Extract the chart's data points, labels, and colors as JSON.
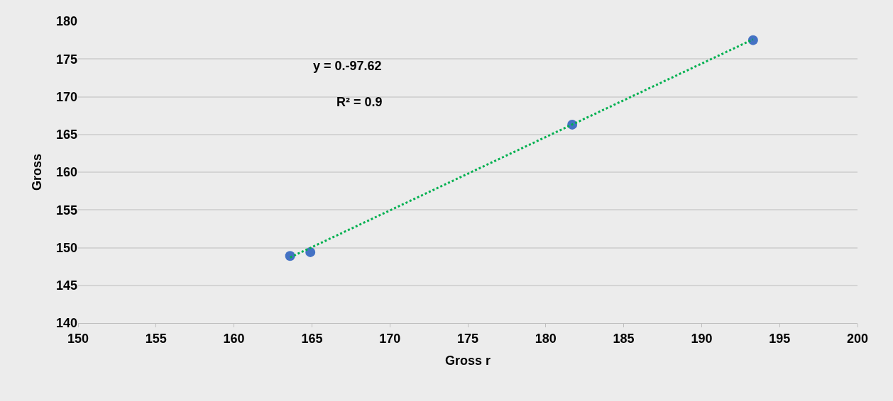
{
  "chart_data": {
    "type": "scatter",
    "xlabel": "Gross r",
    "ylabel": "Gross",
    "annotations": [
      "y = 0.-97.62",
      "R² = 0.9"
    ],
    "series": [
      {
        "color": "#4472c4",
        "marker": "circle",
        "x": [
          163.6,
          164.9,
          181.7,
          193.3
        ],
        "values": [
          148.9,
          149.4,
          166.3,
          177.5
        ]
      },
      {
        "type": "line",
        "color": "#00b050",
        "line_style": "dotted",
        "marker": "none",
        "x": [
          163.6,
          193.3
        ],
        "values": [
          148.7,
          177.6
        ]
      }
    ],
    "xlim": [
      150,
      200
    ],
    "xticks": [
      150,
      155,
      160,
      165,
      170,
      175,
      180,
      185,
      190,
      195,
      200
    ],
    "ylim": [
      140,
      180
    ],
    "yticks": [
      140,
      145,
      150,
      155,
      160,
      165,
      170,
      175,
      180
    ],
    "grid": "y"
  }
}
